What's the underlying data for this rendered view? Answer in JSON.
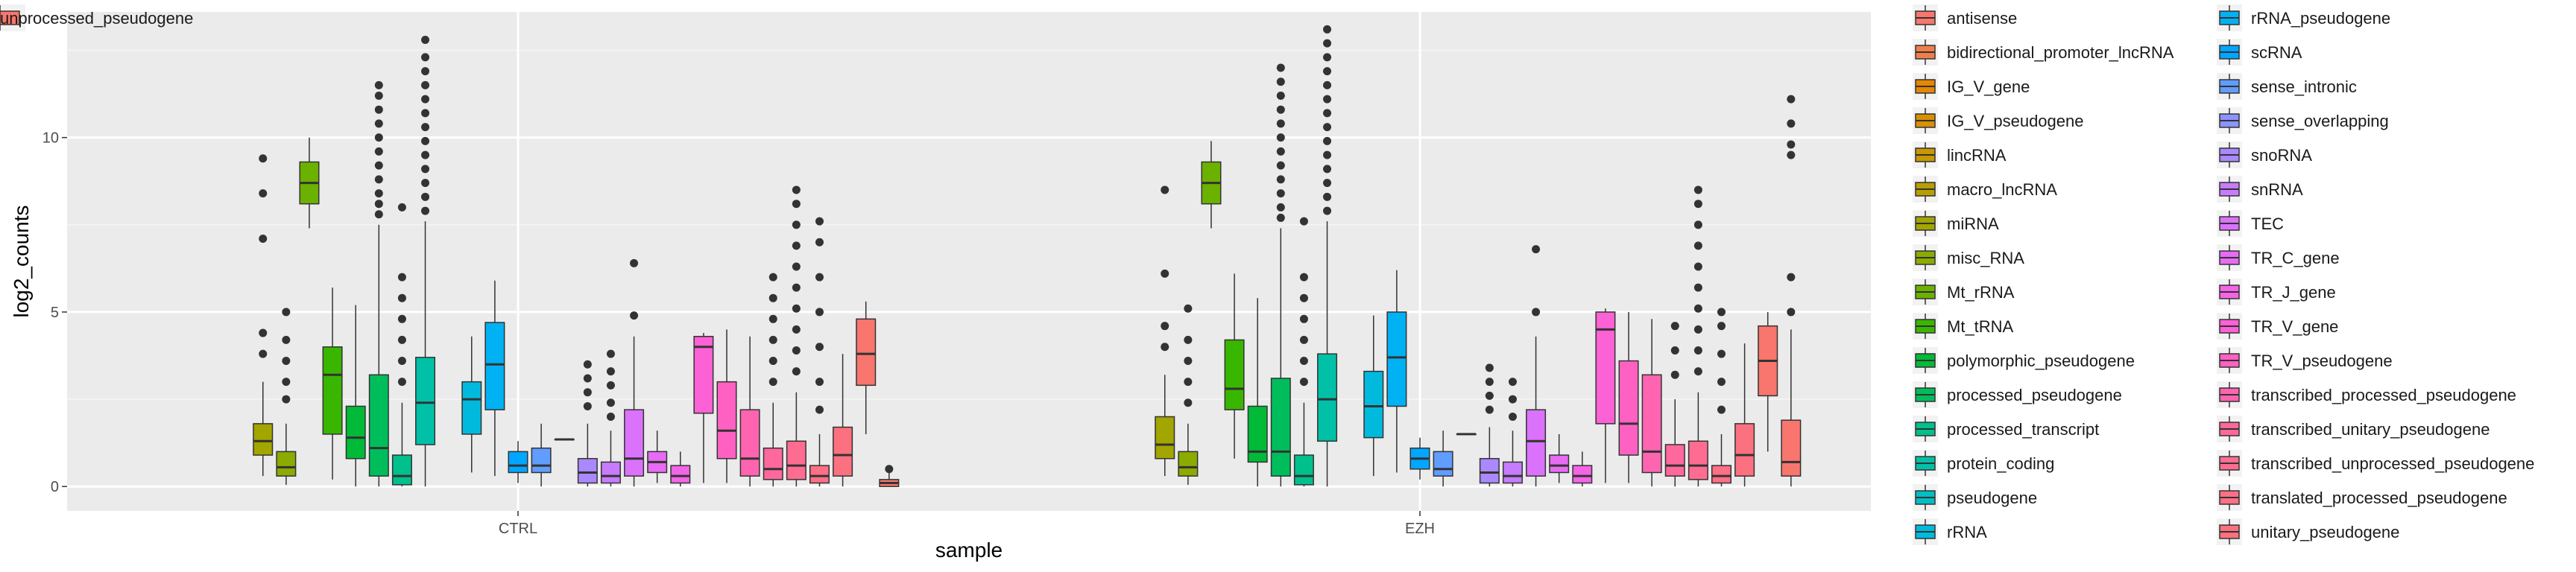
{
  "chart_data": {
    "type": "boxplot",
    "title": "",
    "xlabel": "sample",
    "ylabel": "log2_counts",
    "categories": [
      "CTRL",
      "EZH"
    ],
    "ylim": [
      -0.7,
      13.6
    ],
    "yticks": [
      0,
      5,
      10
    ],
    "grid": true,
    "legend": "right",
    "series": [
      {
        "name": "antisense",
        "color": "#F8766D",
        "boxes": []
      },
      {
        "name": "bidirectional_promoter_lncRNA",
        "color": "#EF7F4A",
        "boxes": []
      },
      {
        "name": "IG_V_gene",
        "color": "#E58700",
        "boxes": []
      },
      {
        "name": "IG_V_pseudogene",
        "color": "#D89000",
        "boxes": []
      },
      {
        "name": "lincRNA",
        "color": "#C99800",
        "boxes": []
      },
      {
        "name": "macro_lncRNA",
        "color": "#B79F00",
        "boxes": []
      },
      {
        "name": "miRNA",
        "color": "#A3A500",
        "boxes": [
          {
            "q1": 0.9,
            "median": 1.3,
            "q3": 1.8,
            "lo": 0.3,
            "hi": 3.0,
            "outliers": [
              3.8,
              4.4,
              7.1,
              8.4,
              9.4
            ]
          },
          {
            "q1": 0.8,
            "median": 1.2,
            "q3": 2.0,
            "lo": 0.3,
            "hi": 3.2,
            "outliers": [
              4.0,
              4.6,
              6.1,
              8.5
            ]
          }
        ]
      },
      {
        "name": "misc_RNA",
        "color": "#8BAB00",
        "boxes": [
          {
            "q1": 0.3,
            "median": 0.55,
            "q3": 1.0,
            "lo": 0.05,
            "hi": 1.8,
            "outliers": [
              2.5,
              3.0,
              3.6,
              4.2,
              5.0
            ]
          },
          {
            "q1": 0.3,
            "median": 0.55,
            "q3": 1.0,
            "lo": 0.05,
            "hi": 1.8,
            "outliers": [
              2.4,
              3.0,
              3.6,
              4.2,
              5.1
            ]
          }
        ]
      },
      {
        "name": "Mt_rRNA",
        "color": "#6BB100",
        "boxes": [
          {
            "q1": 8.1,
            "median": 8.7,
            "q3": 9.3,
            "lo": 7.4,
            "hi": 10.0,
            "outliers": []
          },
          {
            "q1": 8.1,
            "median": 8.7,
            "q3": 9.3,
            "lo": 7.4,
            "hi": 9.9,
            "outliers": []
          }
        ]
      },
      {
        "name": "Mt_tRNA",
        "color": "#39B600",
        "boxes": [
          {
            "q1": 1.5,
            "median": 3.2,
            "q3": 4.0,
            "lo": 0.2,
            "hi": 5.7,
            "outliers": []
          },
          {
            "q1": 2.2,
            "median": 2.8,
            "q3": 4.2,
            "lo": 0.8,
            "hi": 6.1,
            "outliers": []
          }
        ]
      },
      {
        "name": "polymorphic_pseudogene",
        "color": "#00BA38",
        "boxes": [
          {
            "q1": 0.8,
            "median": 1.4,
            "q3": 2.3,
            "lo": 0.0,
            "hi": 5.2,
            "outliers": []
          },
          {
            "q1": 0.7,
            "median": 1.0,
            "q3": 2.3,
            "lo": 0.0,
            "hi": 5.4,
            "outliers": []
          }
        ]
      },
      {
        "name": "processed_pseudogene",
        "color": "#00BD5C",
        "boxes": [
          {
            "q1": 0.3,
            "median": 1.1,
            "q3": 3.2,
            "lo": 0.0,
            "hi": 7.5,
            "outliers": [
              7.8,
              8.1,
              8.4,
              8.8,
              9.2,
              9.6,
              10.0,
              10.4,
              10.8,
              11.2,
              11.5
            ]
          },
          {
            "q1": 0.3,
            "median": 1.0,
            "q3": 3.1,
            "lo": 0.0,
            "hi": 7.4,
            "outliers": [
              7.7,
              8.0,
              8.4,
              8.8,
              9.2,
              9.6,
              10.0,
              10.4,
              10.8,
              11.2,
              11.6,
              12.0
            ]
          }
        ]
      },
      {
        "name": "processed_transcript",
        "color": "#00C08B",
        "boxes": [
          {
            "q1": 0.05,
            "median": 0.3,
            "q3": 0.9,
            "lo": 0.0,
            "hi": 2.4,
            "outliers": [
              3.0,
              3.6,
              4.2,
              4.8,
              5.4,
              6.0,
              8.0
            ]
          },
          {
            "q1": 0.05,
            "median": 0.3,
            "q3": 0.9,
            "lo": 0.0,
            "hi": 2.4,
            "outliers": [
              3.0,
              3.6,
              4.2,
              4.8,
              5.4,
              6.0,
              7.6
            ]
          }
        ]
      },
      {
        "name": "protein_coding",
        "color": "#00C1A7",
        "boxes": [
          {
            "q1": 1.2,
            "median": 2.4,
            "q3": 3.7,
            "lo": 0.0,
            "hi": 7.6,
            "outliers": [
              7.9,
              8.3,
              8.7,
              9.1,
              9.5,
              9.9,
              10.3,
              10.7,
              11.1,
              11.5,
              11.9,
              12.3,
              12.8
            ]
          },
          {
            "q1": 1.3,
            "median": 2.5,
            "q3": 3.8,
            "lo": 0.0,
            "hi": 7.6,
            "outliers": [
              7.9,
              8.3,
              8.7,
              9.1,
              9.5,
              9.9,
              10.3,
              10.7,
              11.1,
              11.5,
              11.9,
              12.3,
              12.7,
              13.1
            ]
          }
        ]
      },
      {
        "name": "pseudogene",
        "color": "#00BFC4",
        "boxes": []
      },
      {
        "name": "rRNA",
        "color": "#00BADE",
        "boxes": [
          {
            "q1": 1.5,
            "median": 2.5,
            "q3": 3.0,
            "lo": 0.4,
            "hi": 4.3,
            "outliers": []
          },
          {
            "q1": 1.4,
            "median": 2.3,
            "q3": 3.3,
            "lo": 0.3,
            "hi": 4.9,
            "outliers": []
          }
        ]
      },
      {
        "name": "rRNA_pseudogene",
        "color": "#00B2F3",
        "boxes": [
          {
            "q1": 2.2,
            "median": 3.5,
            "q3": 4.7,
            "lo": 0.3,
            "hi": 5.9,
            "outliers": []
          },
          {
            "q1": 2.3,
            "median": 3.7,
            "q3": 5.0,
            "lo": 0.4,
            "hi": 6.2,
            "outliers": []
          }
        ]
      },
      {
        "name": "scRNA",
        "color": "#00A6FF",
        "boxes": [
          {
            "q1": 0.4,
            "median": 0.6,
            "q3": 1.0,
            "lo": 0.1,
            "hi": 1.3,
            "outliers": []
          },
          {
            "q1": 0.5,
            "median": 0.8,
            "q3": 1.1,
            "lo": 0.2,
            "hi": 1.4,
            "outliers": []
          }
        ]
      },
      {
        "name": "sense_intronic",
        "color": "#619CFF",
        "boxes": [
          {
            "q1": 0.4,
            "median": 0.6,
            "q3": 1.1,
            "lo": 0.0,
            "hi": 1.8,
            "outliers": []
          },
          {
            "q1": 0.3,
            "median": 0.5,
            "q3": 1.0,
            "lo": 0.0,
            "hi": 1.6,
            "outliers": []
          }
        ]
      },
      {
        "name": "sense_overlapping",
        "color": "#8B93FF",
        "boxes": [
          {
            "q1": 1.35,
            "median": 1.35,
            "q3": 1.35,
            "lo": 1.35,
            "hi": 1.35,
            "outliers": []
          },
          {
            "q1": 1.5,
            "median": 1.5,
            "q3": 1.5,
            "lo": 1.5,
            "hi": 1.5,
            "outliers": []
          }
        ]
      },
      {
        "name": "snoRNA",
        "color": "#AA88FF",
        "boxes": [
          {
            "q1": 0.1,
            "median": 0.4,
            "q3": 0.8,
            "lo": 0.0,
            "hi": 1.8,
            "outliers": [
              2.3,
              2.7,
              3.1,
              3.5
            ]
          },
          {
            "q1": 0.1,
            "median": 0.4,
            "q3": 0.8,
            "lo": 0.0,
            "hi": 1.7,
            "outliers": [
              2.2,
              2.6,
              3.0,
              3.4
            ]
          }
        ]
      },
      {
        "name": "snRNA",
        "color": "#C77CFF",
        "boxes": [
          {
            "q1": 0.1,
            "median": 0.3,
            "q3": 0.7,
            "lo": 0.0,
            "hi": 1.6,
            "outliers": [
              2.0,
              2.4,
              2.9,
              3.3,
              3.8
            ]
          },
          {
            "q1": 0.1,
            "median": 0.3,
            "q3": 0.7,
            "lo": 0.0,
            "hi": 1.6,
            "outliers": [
              2.0,
              2.5,
              3.0
            ]
          }
        ]
      },
      {
        "name": "TEC",
        "color": "#DB72FB",
        "boxes": [
          {
            "q1": 0.3,
            "median": 0.8,
            "q3": 2.2,
            "lo": 0.0,
            "hi": 4.3,
            "outliers": [
              4.9,
              6.4
            ]
          },
          {
            "q1": 0.3,
            "median": 1.3,
            "q3": 2.2,
            "lo": 0.0,
            "hi": 4.3,
            "outliers": [
              5.0,
              6.8
            ]
          }
        ]
      },
      {
        "name": "TR_C_gene",
        "color": "#E76BF3",
        "boxes": [
          {
            "q1": 0.4,
            "median": 0.7,
            "q3": 1.0,
            "lo": 0.1,
            "hi": 1.6,
            "outliers": []
          },
          {
            "q1": 0.4,
            "median": 0.6,
            "q3": 0.9,
            "lo": 0.1,
            "hi": 1.5,
            "outliers": []
          }
        ]
      },
      {
        "name": "TR_J_gene",
        "color": "#F365E6",
        "boxes": [
          {
            "q1": 0.1,
            "median": 0.3,
            "q3": 0.6,
            "lo": 0.0,
            "hi": 1.0,
            "outliers": []
          },
          {
            "q1": 0.1,
            "median": 0.3,
            "q3": 0.6,
            "lo": 0.0,
            "hi": 1.0,
            "outliers": []
          }
        ]
      },
      {
        "name": "TR_V_gene",
        "color": "#FC61D5",
        "boxes": [
          {
            "q1": 2.1,
            "median": 4.0,
            "q3": 4.3,
            "lo": 0.1,
            "hi": 4.4,
            "outliers": []
          },
          {
            "q1": 1.8,
            "median": 4.5,
            "q3": 5.0,
            "lo": 0.1,
            "hi": 5.1,
            "outliers": []
          }
        ]
      },
      {
        "name": "TR_V_pseudogene",
        "color": "#FF61C3",
        "boxes": [
          {
            "q1": 0.8,
            "median": 1.6,
            "q3": 3.0,
            "lo": 0.1,
            "hi": 4.5,
            "outliers": []
          },
          {
            "q1": 0.9,
            "median": 1.8,
            "q3": 3.6,
            "lo": 0.1,
            "hi": 5.0,
            "outliers": []
          }
        ]
      },
      {
        "name": "transcribed_processed_pseudogene",
        "color": "#FF64B0",
        "boxes": [
          {
            "q1": 0.3,
            "median": 0.8,
            "q3": 2.2,
            "lo": 0.0,
            "hi": 4.3,
            "outliers": []
          },
          {
            "q1": 0.4,
            "median": 1.0,
            "q3": 3.2,
            "lo": 0.0,
            "hi": 4.8,
            "outliers": []
          }
        ]
      },
      {
        "name": "transcribed_unitary_pseudogene",
        "color": "#FF689C",
        "boxes": [
          {
            "q1": 0.2,
            "median": 0.5,
            "q3": 1.1,
            "lo": 0.0,
            "hi": 2.4,
            "outliers": [
              3.0,
              3.6,
              4.2,
              4.8,
              5.4,
              6.0
            ]
          },
          {
            "q1": 0.3,
            "median": 0.6,
            "q3": 1.2,
            "lo": 0.0,
            "hi": 2.5,
            "outliers": [
              3.2,
              3.9,
              4.6
            ]
          }
        ]
      },
      {
        "name": "transcribed_unprocessed_pseudogene",
        "color": "#FF6C91",
        "boxes": [
          {
            "q1": 0.2,
            "median": 0.6,
            "q3": 1.3,
            "lo": 0.0,
            "hi": 2.7,
            "outliers": [
              3.3,
              3.9,
              4.5,
              5.1,
              5.7,
              6.3,
              6.9,
              7.5,
              8.1,
              8.5
            ]
          },
          {
            "q1": 0.2,
            "median": 0.6,
            "q3": 1.3,
            "lo": 0.0,
            "hi": 2.7,
            "outliers": [
              3.3,
              3.9,
              4.5,
              5.1,
              5.7,
              6.3,
              6.9,
              7.5,
              8.1,
              8.5
            ]
          }
        ]
      },
      {
        "name": "translated_processed_pseudogene",
        "color": "#FF6F86",
        "boxes": [
          {
            "q1": 0.1,
            "median": 0.3,
            "q3": 0.6,
            "lo": 0.0,
            "hi": 1.5,
            "outliers": [
              2.2,
              3.0,
              4.0,
              5.0,
              6.0,
              7.0,
              7.6
            ]
          },
          {
            "q1": 0.1,
            "median": 0.3,
            "q3": 0.6,
            "lo": 0.0,
            "hi": 1.5,
            "outliers": [
              2.2,
              3.0,
              3.8,
              4.6,
              5.0
            ]
          }
        ]
      },
      {
        "name": "unitary_pseudogene",
        "color": "#FC717F",
        "boxes": [
          {
            "q1": 0.3,
            "median": 0.9,
            "q3": 1.7,
            "lo": 0.0,
            "hi": 3.8,
            "outliers": []
          },
          {
            "q1": 0.3,
            "median": 0.9,
            "q3": 1.8,
            "lo": 0.0,
            "hi": 4.1,
            "outliers": []
          }
        ]
      },
      {
        "name": "unprocessed_pseudogene",
        "color": "#F8766D",
        "boxes": [
          {
            "q1": 2.9,
            "median": 3.8,
            "q3": 4.8,
            "lo": 1.5,
            "hi": 5.3,
            "outliers": []
          },
          {
            "q1": 2.6,
            "median": 3.6,
            "q3": 4.6,
            "lo": 1.0,
            "hi": 5.0,
            "outliers": []
          }
        ]
      }
    ],
    "extra_boxes": [
      {
        "q1": 0.0,
        "median": 0.1,
        "q3": 0.2,
        "lo": 0.0,
        "hi": 0.4,
        "outliers": [
          0.5
        ]
      },
      {
        "q1": 0.3,
        "median": 0.7,
        "q3": 1.9,
        "lo": 0.0,
        "hi": 4.5,
        "outliers": [
          5.0,
          6.0,
          9.5,
          9.8,
          10.4,
          11.1
        ]
      }
    ]
  }
}
